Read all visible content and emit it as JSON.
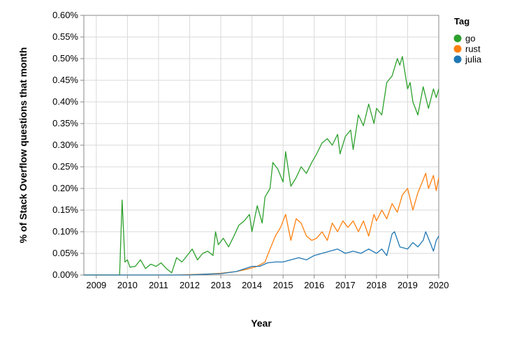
{
  "chart_data": {
    "type": "line",
    "title": "",
    "xlabel": "Year",
    "ylabel": "% of Stack Overflow questions that month",
    "x_ticks": [
      2009,
      2010,
      2011,
      2012,
      2013,
      2014,
      2015,
      2016,
      2017,
      2018,
      2019,
      2020
    ],
    "x_tick_labels": [
      "2009",
      "2010",
      "2011",
      "2012",
      "2013",
      "2014",
      "2015",
      "2016",
      "2017",
      "2018",
      "2019",
      "2020"
    ],
    "xlim": [
      2008.6,
      2020.0
    ],
    "y_ticks": [
      0.0,
      0.05,
      0.1,
      0.15,
      0.2,
      0.25,
      0.3,
      0.35,
      0.4,
      0.45,
      0.5,
      0.55,
      0.6
    ],
    "y_tick_labels": [
      "0.00%",
      "0.05%",
      "0.10%",
      "0.15%",
      "0.20%",
      "0.25%",
      "0.30%",
      "0.35%",
      "0.40%",
      "0.45%",
      "0.50%",
      "0.55%",
      "0.60%"
    ],
    "ylim": [
      0.0,
      0.6
    ],
    "grid": true,
    "legend_title": "Tag",
    "legend_position": "top-right",
    "series": [
      {
        "name": "go",
        "color": "#2ca02c",
        "points": [
          [
            2008.6,
            0.0
          ],
          [
            2009.0,
            0.0
          ],
          [
            2009.5,
            0.0
          ],
          [
            2009.75,
            0.0
          ],
          [
            2009.83,
            0.173
          ],
          [
            2009.92,
            0.03
          ],
          [
            2010.0,
            0.035
          ],
          [
            2010.08,
            0.018
          ],
          [
            2010.25,
            0.02
          ],
          [
            2010.42,
            0.035
          ],
          [
            2010.58,
            0.015
          ],
          [
            2010.75,
            0.025
          ],
          [
            2010.92,
            0.02
          ],
          [
            2011.08,
            0.028
          ],
          [
            2011.25,
            0.015
          ],
          [
            2011.42,
            0.005
          ],
          [
            2011.58,
            0.04
          ],
          [
            2011.75,
            0.03
          ],
          [
            2011.92,
            0.045
          ],
          [
            2012.08,
            0.06
          ],
          [
            2012.25,
            0.035
          ],
          [
            2012.42,
            0.05
          ],
          [
            2012.58,
            0.055
          ],
          [
            2012.75,
            0.045
          ],
          [
            2012.83,
            0.1
          ],
          [
            2012.92,
            0.07
          ],
          [
            2013.08,
            0.085
          ],
          [
            2013.25,
            0.065
          ],
          [
            2013.42,
            0.09
          ],
          [
            2013.58,
            0.115
          ],
          [
            2013.75,
            0.125
          ],
          [
            2013.92,
            0.14
          ],
          [
            2014.0,
            0.1
          ],
          [
            2014.17,
            0.16
          ],
          [
            2014.33,
            0.12
          ],
          [
            2014.42,
            0.18
          ],
          [
            2014.58,
            0.2
          ],
          [
            2014.67,
            0.26
          ],
          [
            2014.83,
            0.245
          ],
          [
            2015.0,
            0.215
          ],
          [
            2015.08,
            0.285
          ],
          [
            2015.25,
            0.205
          ],
          [
            2015.42,
            0.225
          ],
          [
            2015.58,
            0.25
          ],
          [
            2015.75,
            0.235
          ],
          [
            2015.92,
            0.26
          ],
          [
            2016.08,
            0.28
          ],
          [
            2016.25,
            0.305
          ],
          [
            2016.42,
            0.315
          ],
          [
            2016.58,
            0.3
          ],
          [
            2016.75,
            0.325
          ],
          [
            2016.83,
            0.28
          ],
          [
            2017.0,
            0.32
          ],
          [
            2017.17,
            0.335
          ],
          [
            2017.25,
            0.29
          ],
          [
            2017.42,
            0.37
          ],
          [
            2017.58,
            0.345
          ],
          [
            2017.75,
            0.395
          ],
          [
            2017.92,
            0.35
          ],
          [
            2018.0,
            0.385
          ],
          [
            2018.17,
            0.37
          ],
          [
            2018.33,
            0.445
          ],
          [
            2018.5,
            0.46
          ],
          [
            2018.67,
            0.5
          ],
          [
            2018.75,
            0.485
          ],
          [
            2018.83,
            0.505
          ],
          [
            2019.0,
            0.43
          ],
          [
            2019.08,
            0.445
          ],
          [
            2019.17,
            0.4
          ],
          [
            2019.33,
            0.37
          ],
          [
            2019.5,
            0.435
          ],
          [
            2019.67,
            0.385
          ],
          [
            2019.83,
            0.43
          ],
          [
            2019.92,
            0.41
          ],
          [
            2020.0,
            0.43
          ]
        ]
      },
      {
        "name": "rust",
        "color": "#ff7f0e",
        "points": [
          [
            2008.6,
            0.0
          ],
          [
            2011.5,
            0.0
          ],
          [
            2012.0,
            0.001
          ],
          [
            2012.5,
            0.002
          ],
          [
            2013.0,
            0.004
          ],
          [
            2013.5,
            0.008
          ],
          [
            2013.83,
            0.013
          ],
          [
            2014.17,
            0.02
          ],
          [
            2014.42,
            0.03
          ],
          [
            2014.58,
            0.06
          ],
          [
            2014.75,
            0.09
          ],
          [
            2014.92,
            0.11
          ],
          [
            2015.08,
            0.14
          ],
          [
            2015.25,
            0.08
          ],
          [
            2015.42,
            0.13
          ],
          [
            2015.58,
            0.12
          ],
          [
            2015.75,
            0.09
          ],
          [
            2015.92,
            0.08
          ],
          [
            2016.08,
            0.085
          ],
          [
            2016.25,
            0.1
          ],
          [
            2016.42,
            0.08
          ],
          [
            2016.58,
            0.12
          ],
          [
            2016.75,
            0.1
          ],
          [
            2016.92,
            0.125
          ],
          [
            2017.08,
            0.11
          ],
          [
            2017.25,
            0.125
          ],
          [
            2017.42,
            0.1
          ],
          [
            2017.58,
            0.125
          ],
          [
            2017.75,
            0.09
          ],
          [
            2017.92,
            0.14
          ],
          [
            2018.0,
            0.125
          ],
          [
            2018.17,
            0.15
          ],
          [
            2018.33,
            0.13
          ],
          [
            2018.5,
            0.165
          ],
          [
            2018.67,
            0.145
          ],
          [
            2018.83,
            0.185
          ],
          [
            2019.0,
            0.2
          ],
          [
            2019.17,
            0.15
          ],
          [
            2019.33,
            0.19
          ],
          [
            2019.5,
            0.22
          ],
          [
            2019.58,
            0.235
          ],
          [
            2019.67,
            0.2
          ],
          [
            2019.83,
            0.23
          ],
          [
            2019.92,
            0.195
          ],
          [
            2020.0,
            0.225
          ]
        ]
      },
      {
        "name": "julia",
        "color": "#1f77b4",
        "points": [
          [
            2008.6,
            0.0
          ],
          [
            2012.0,
            0.0
          ],
          [
            2012.5,
            0.002
          ],
          [
            2013.0,
            0.003
          ],
          [
            2013.5,
            0.008
          ],
          [
            2014.0,
            0.02
          ],
          [
            2014.25,
            0.02
          ],
          [
            2014.5,
            0.028
          ],
          [
            2014.75,
            0.03
          ],
          [
            2015.0,
            0.03
          ],
          [
            2015.25,
            0.035
          ],
          [
            2015.5,
            0.04
          ],
          [
            2015.75,
            0.035
          ],
          [
            2016.0,
            0.045
          ],
          [
            2016.25,
            0.05
          ],
          [
            2016.5,
            0.055
          ],
          [
            2016.75,
            0.06
          ],
          [
            2017.0,
            0.05
          ],
          [
            2017.25,
            0.055
          ],
          [
            2017.5,
            0.05
          ],
          [
            2017.75,
            0.06
          ],
          [
            2018.0,
            0.05
          ],
          [
            2018.17,
            0.06
          ],
          [
            2018.33,
            0.045
          ],
          [
            2018.5,
            0.095
          ],
          [
            2018.58,
            0.1
          ],
          [
            2018.75,
            0.065
          ],
          [
            2019.0,
            0.06
          ],
          [
            2019.17,
            0.075
          ],
          [
            2019.33,
            0.065
          ],
          [
            2019.5,
            0.08
          ],
          [
            2019.58,
            0.1
          ],
          [
            2019.75,
            0.07
          ],
          [
            2019.83,
            0.055
          ],
          [
            2019.92,
            0.08
          ],
          [
            2020.0,
            0.09
          ]
        ]
      }
    ]
  }
}
